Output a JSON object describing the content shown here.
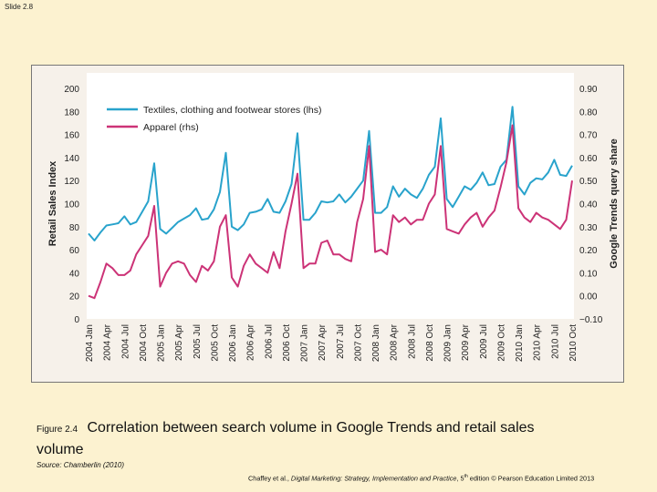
{
  "slide": {
    "number_label": "Slide 2.8"
  },
  "figure": {
    "label": "Figure 2.4",
    "caption": "Correlation between search volume in Google Trends and retail sales volume",
    "source": "Source: Chamberlin (2010)",
    "credit_author": "Chaffey et al.,",
    "credit_title": "Digital Marketing: Strategy, Implementation and Practice",
    "credit_edition_num": ", 5",
    "credit_edition_sup": "th",
    "credit_rest": " edition © Pearson Education Limited 2013"
  },
  "colors": {
    "textiles": "#29a3cc",
    "apparel": "#cc3377",
    "plot_bg": "#ffffff",
    "frame_bg": "#f6f1ea"
  },
  "chart_data": {
    "type": "line",
    "ylabel_left": "Retail Sales Index",
    "ylabel_right": "Google Trends query share",
    "ylim_left": [
      0,
      200
    ],
    "ylim_right": [
      -0.1,
      0.9
    ],
    "yticks_left": [
      "0",
      "20",
      "40",
      "60",
      "80",
      "100",
      "120",
      "140",
      "160",
      "180",
      "200"
    ],
    "yticks_right": [
      "−0.10",
      "0.00",
      "0.10",
      "0.20",
      "0.30",
      "0.40",
      "0.50",
      "0.60",
      "0.70",
      "0.80",
      "0.90"
    ],
    "xtick_labels": [
      "2004 Jan",
      "2004 Apr",
      "2004 Jul",
      "2004 Oct",
      "2005 Jan",
      "2005 Apr",
      "2005 Jul",
      "2005 Oct",
      "2006 Jan",
      "2006 Apr",
      "2006 Jul",
      "2006 Oct",
      "2007 Jan",
      "2007 Apr",
      "2007 Jul",
      "2007 Oct",
      "2008 Jan",
      "2008 Apr",
      "2008 Jul",
      "2008 Oct",
      "2009 Jan",
      "2009 Apr",
      "2009 Jul",
      "2009 Oct",
      "2010 Jan",
      "2010 Apr",
      "2010 Jul",
      "2010 Oct"
    ],
    "months": 82,
    "series": [
      {
        "name": "Textiles, clothing and footwear stores (lhs)",
        "axis": "left",
        "values": [
          74,
          68,
          75,
          81,
          82,
          83,
          89,
          82,
          84,
          93,
          102,
          135,
          78,
          74,
          79,
          84,
          87,
          90,
          96,
          86,
          87,
          95,
          110,
          144,
          80,
          77,
          82,
          92,
          93,
          95,
          104,
          93,
          92,
          102,
          117,
          161,
          86,
          86,
          92,
          102,
          101,
          102,
          108,
          101,
          106,
          113,
          120,
          163,
          92,
          92,
          97,
          115,
          106,
          113,
          108,
          105,
          113,
          125,
          132,
          174,
          104,
          97,
          106,
          115,
          112,
          118,
          127,
          116,
          117,
          132,
          138,
          184,
          115,
          108,
          118,
          122,
          121,
          127,
          138,
          125,
          124,
          133
        ]
      },
      {
        "name": "Apparel (rhs)",
        "axis": "right",
        "values": [
          0.0,
          -0.01,
          0.06,
          0.14,
          0.12,
          0.09,
          0.09,
          0.11,
          0.18,
          0.22,
          0.26,
          0.39,
          0.04,
          0.1,
          0.14,
          0.15,
          0.14,
          0.09,
          0.06,
          0.13,
          0.11,
          0.15,
          0.3,
          0.35,
          0.08,
          0.04,
          0.13,
          0.18,
          0.14,
          0.12,
          0.1,
          0.19,
          0.12,
          0.28,
          0.4,
          0.53,
          0.12,
          0.14,
          0.14,
          0.23,
          0.24,
          0.18,
          0.18,
          0.16,
          0.15,
          0.32,
          0.42,
          0.65,
          0.19,
          0.2,
          0.18,
          0.35,
          0.32,
          0.34,
          0.31,
          0.33,
          0.33,
          0.4,
          0.44,
          0.65,
          0.29,
          0.28,
          0.27,
          0.31,
          0.34,
          0.36,
          0.3,
          0.34,
          0.37,
          0.47,
          0.58,
          0.74,
          0.38,
          0.34,
          0.32,
          0.36,
          0.34,
          0.33,
          0.31,
          0.29,
          0.33,
          0.5
        ]
      }
    ]
  }
}
